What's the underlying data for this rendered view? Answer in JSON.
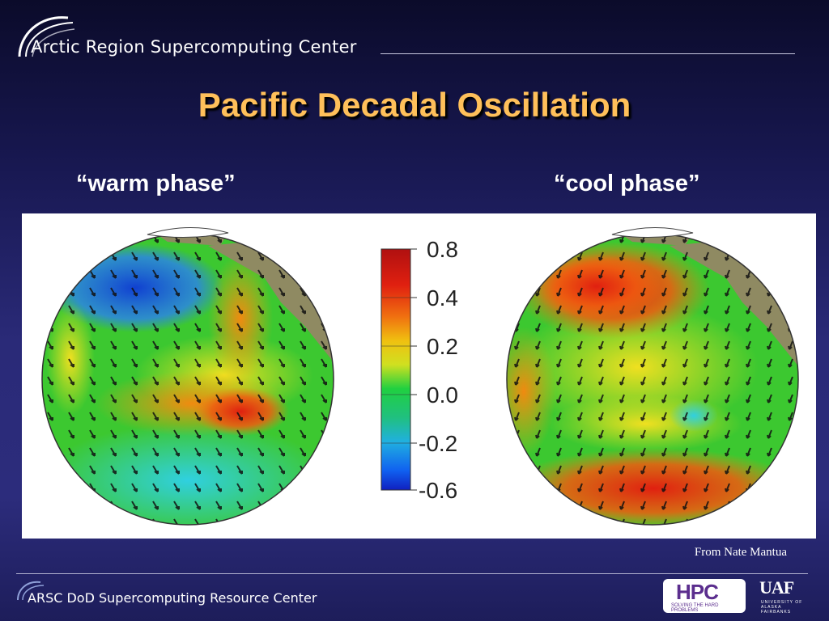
{
  "header": {
    "org_name": "Arctic Region Supercomputing Center"
  },
  "title": "Pacific Decadal Oscillation",
  "phases": {
    "warm": "“warm phase”",
    "cool": "“cool phase”"
  },
  "colorbar": {
    "ticks": [
      "0.8",
      "0.4",
      "0.2",
      "0.0",
      "-0.2",
      "-0.6"
    ]
  },
  "credit": "From Nate Mantua",
  "footer": {
    "text": "ARSC DoD Supercomputing Resource Center",
    "hpc_logo": "HPC",
    "hpc_tagline": "SOLVING THE HARD PROBLEMS",
    "uaf_logo": "UAF",
    "uaf_tagline": "UNIVERSITY OF ALASKA FAIRBANKS"
  },
  "colors": {
    "title": "#ffc05a",
    "background": "#2a2a78"
  }
}
